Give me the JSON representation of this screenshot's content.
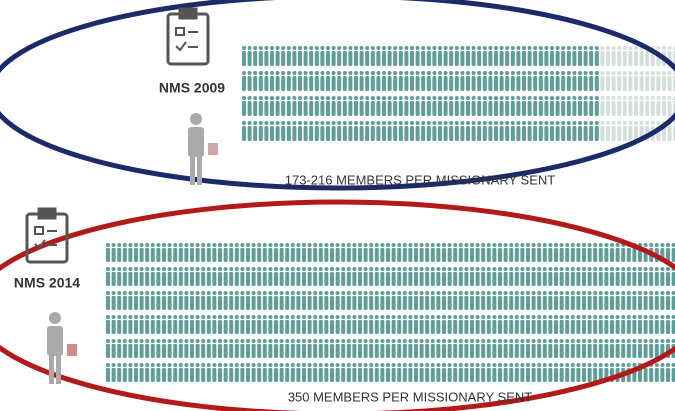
{
  "sections": [
    {
      "label": "NMS 2009",
      "caption": "173-216 MEMBERS PER MISSIONARY SENT"
    },
    {
      "label": "NMS 2014",
      "caption": "350 MEMBERS PER MISSIONARY SENT"
    }
  ]
}
